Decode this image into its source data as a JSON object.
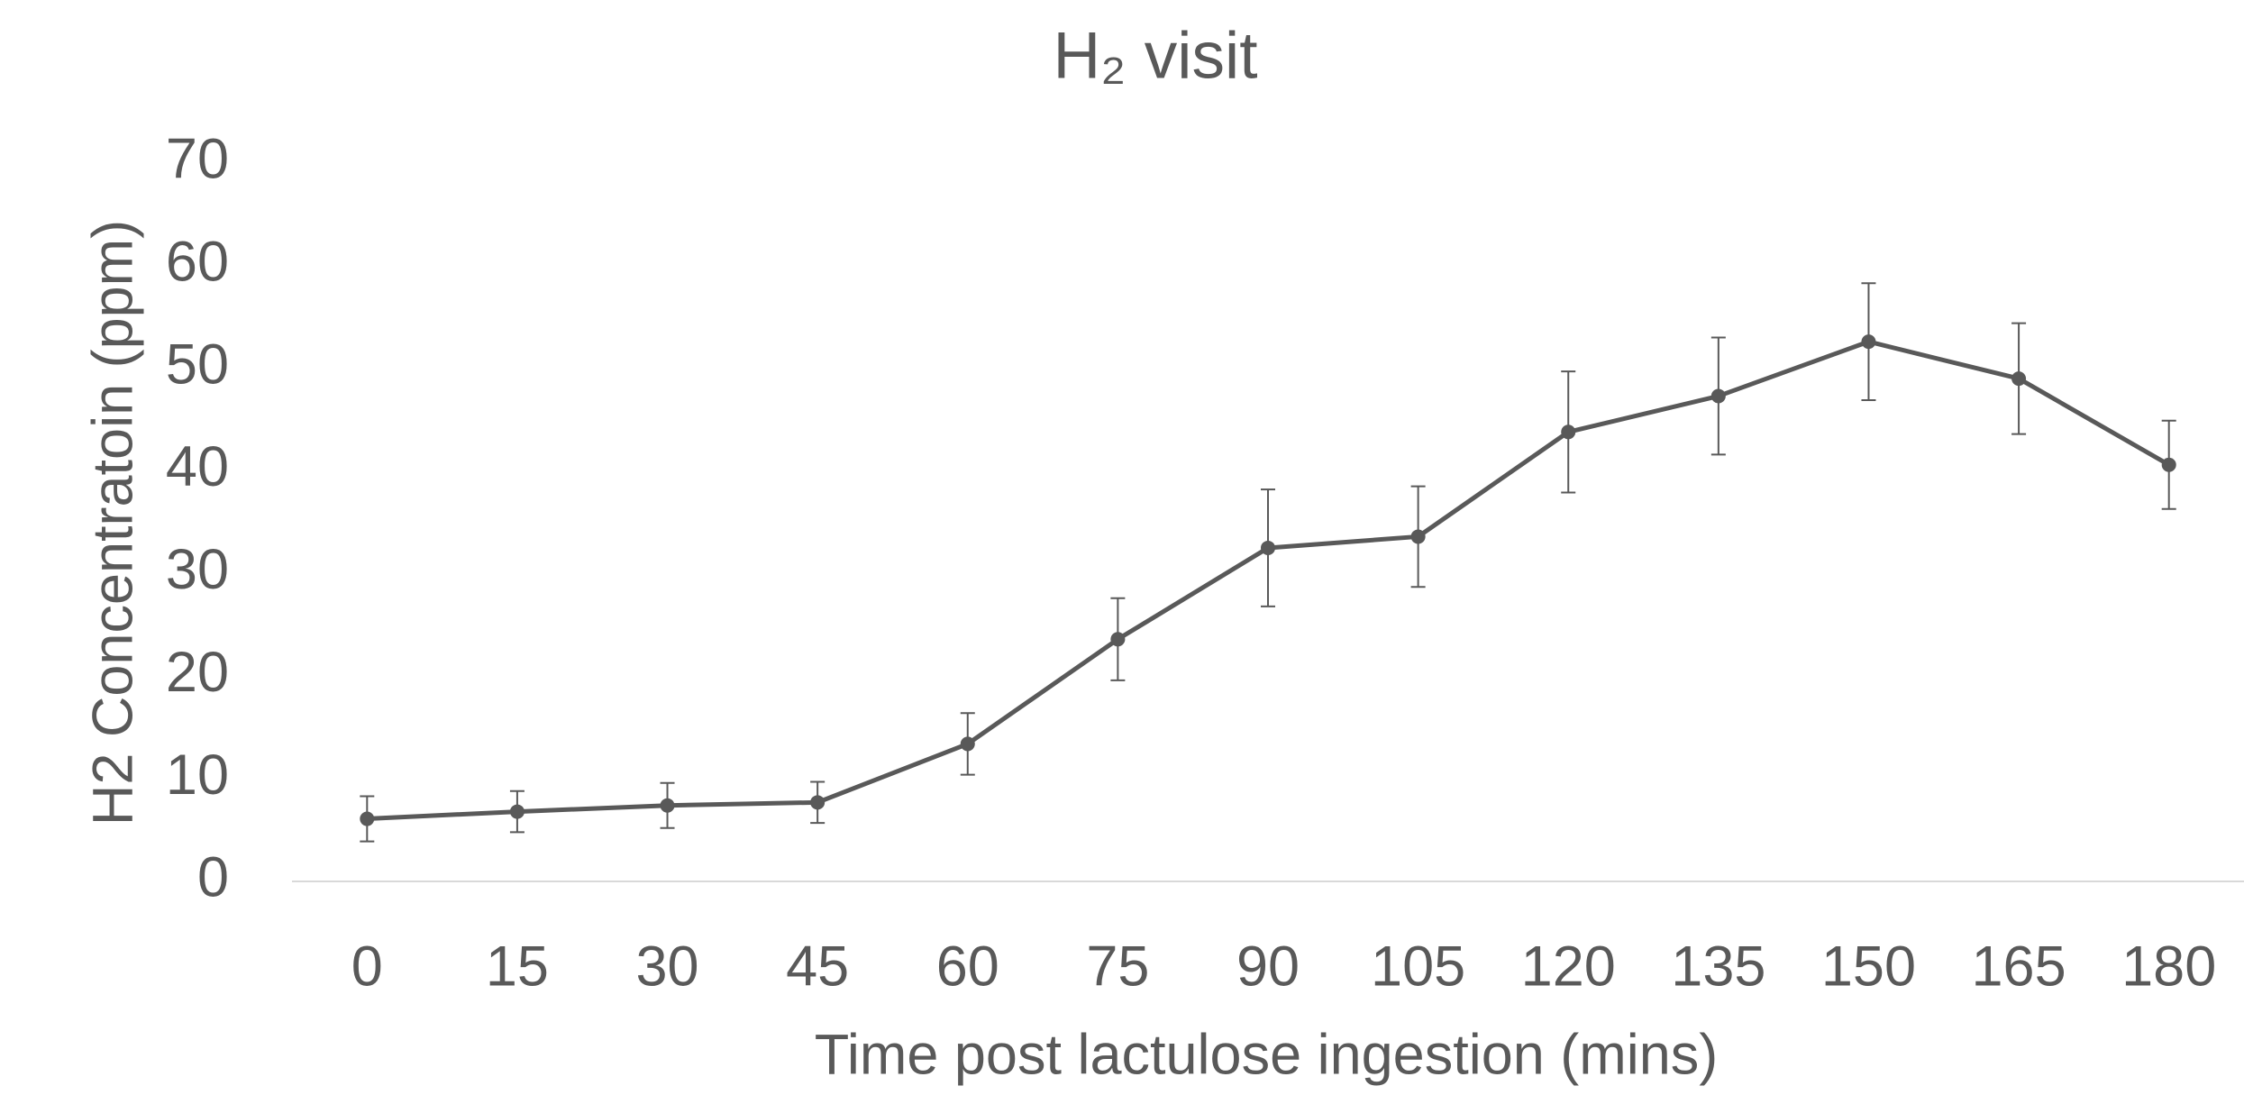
{
  "chart_data": {
    "type": "line",
    "title": "H₂ visit",
    "x_label": "Time post lactulose ingestion (mins)",
    "y_label": "H2 Concentratoin (ppm)",
    "categories": [
      "0",
      "15",
      "30",
      "45",
      "60",
      "75",
      "90",
      "105",
      "120",
      "135",
      "150",
      "165",
      "180"
    ],
    "values": [
      6.1,
      6.8,
      7.4,
      7.7,
      13.4,
      23.6,
      32.5,
      33.6,
      43.8,
      47.3,
      52.6,
      49.0,
      40.6
    ],
    "errors": [
      2.2,
      2.0,
      2.2,
      2.0,
      3.0,
      4.0,
      5.7,
      4.9,
      5.9,
      5.7,
      5.7,
      5.4,
      4.3
    ],
    "color": "#595959",
    "ylim": [
      0,
      70
    ],
    "yticks": [
      0,
      10,
      20,
      30,
      40,
      50,
      60,
      70
    ],
    "grid": false
  }
}
